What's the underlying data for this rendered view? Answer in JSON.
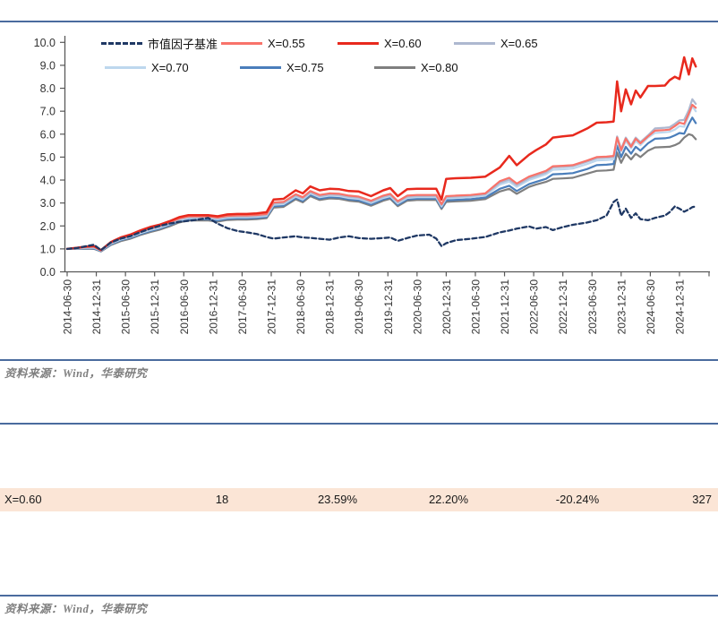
{
  "notes": {
    "source_top": "资料来源：Wind，华泰研究",
    "source_bottom": "资料来源：Wind，华泰研究"
  },
  "colors": {
    "divider": "#4a6b9e",
    "axis": "#595959",
    "tick_label": "#333333",
    "table_row_bg": "#FBE5D6"
  },
  "legend": {
    "items": [
      {
        "key": "benchmark",
        "label": "市值因子基准",
        "color": "#1F3864",
        "dashed": true
      },
      {
        "key": "x055",
        "label": "X=0.55",
        "color": "#F8736A",
        "dashed": false
      },
      {
        "key": "x060",
        "label": "X=0.60",
        "color": "#E8291D",
        "dashed": false
      },
      {
        "key": "x065",
        "label": "X=0.65",
        "color": "#AEB8D0",
        "dashed": false
      },
      {
        "key": "x070",
        "label": "X=0.70",
        "color": "#BDD7EE",
        "dashed": false
      },
      {
        "key": "x075",
        "label": "X=0.75",
        "color": "#4A7EBB",
        "dashed": false
      },
      {
        "key": "x080",
        "label": "X=0.80",
        "color": "#7F7F7F",
        "dashed": false
      }
    ]
  },
  "chart_data": {
    "type": "line",
    "title": "",
    "xlabel": "",
    "ylabel": "",
    "ylim": [
      0,
      10
    ],
    "grid": false,
    "legend_position": "top",
    "yticks": [
      "0.0",
      "1.0",
      "2.0",
      "3.0",
      "4.0",
      "5.0",
      "6.0",
      "7.0",
      "8.0",
      "9.0",
      "10.0"
    ],
    "xtick_labels": [
      "2014-06-30",
      "2014-12-31",
      "2015-06-30",
      "2015-12-31",
      "2016-06-30",
      "2016-12-31",
      "2017-06-30",
      "2017-12-31",
      "2018-06-30",
      "2018-12-31",
      "2019-06-30",
      "2019-12-31",
      "2020-06-30",
      "2020-12-31",
      "2021-06-30",
      "2021-12-31",
      "2022-06-30",
      "2022-12-31",
      "2023-06-30",
      "2023-12-31",
      "2024-06-30",
      "2024-12-31"
    ],
    "x_years": [
      2014.5,
      2014.67,
      2014.83,
      2014.96,
      2015.08,
      2015.25,
      2015.42,
      2015.58,
      2015.75,
      2015.92,
      2016.08,
      2016.25,
      2016.42,
      2016.58,
      2016.75,
      2016.92,
      2017.08,
      2017.25,
      2017.42,
      2017.58,
      2017.75,
      2017.92,
      2018.04,
      2018.21,
      2018.42,
      2018.54,
      2018.67,
      2018.83,
      2019.0,
      2019.17,
      2019.33,
      2019.5,
      2019.71,
      2019.92,
      2020.04,
      2020.17,
      2020.33,
      2020.5,
      2020.71,
      2020.83,
      2020.92,
      2021.0,
      2021.17,
      2021.42,
      2021.67,
      2021.92,
      2022.08,
      2022.21,
      2022.42,
      2022.54,
      2022.71,
      2022.83,
      2023.0,
      2023.17,
      2023.42,
      2023.58,
      2023.75,
      2023.87,
      2023.93,
      2024.0,
      2024.08,
      2024.17,
      2024.25,
      2024.33,
      2024.46,
      2024.58,
      2024.75,
      2024.83,
      2024.92,
      2025.0,
      2025.08,
      2025.16,
      2025.22,
      2025.28
    ],
    "series": [
      {
        "name": "X=0.80",
        "color": "#7F7F7F",
        "dashed": false,
        "stroke_width": 2.2,
        "values": [
          1.0,
          1.0,
          1.01,
          1.0,
          0.89,
          1.17,
          1.34,
          1.44,
          1.6,
          1.73,
          1.83,
          1.98,
          2.15,
          2.24,
          2.24,
          2.24,
          2.19,
          2.26,
          2.28,
          2.28,
          2.3,
          2.34,
          2.8,
          2.83,
          3.16,
          3.03,
          3.3,
          3.13,
          3.2,
          3.18,
          3.1,
          3.06,
          2.88,
          3.1,
          3.18,
          2.86,
          3.1,
          3.13,
          3.13,
          3.13,
          2.74,
          3.05,
          3.07,
          3.1,
          3.17,
          3.5,
          3.62,
          3.4,
          3.7,
          3.8,
          3.92,
          4.05,
          4.07,
          4.1,
          4.28,
          4.4,
          4.42,
          4.45,
          5.2,
          4.75,
          5.15,
          4.9,
          5.15,
          5.0,
          5.28,
          5.42,
          5.44,
          5.45,
          5.52,
          5.62,
          5.85,
          6.0,
          5.95,
          5.78
        ]
      },
      {
        "name": "X=0.75",
        "color": "#4A7EBB",
        "dashed": false,
        "stroke_width": 2.2,
        "values": [
          1.0,
          1.01,
          1.03,
          1.02,
          0.9,
          1.2,
          1.38,
          1.48,
          1.64,
          1.78,
          1.88,
          2.03,
          2.2,
          2.29,
          2.29,
          2.29,
          2.24,
          2.31,
          2.33,
          2.33,
          2.35,
          2.39,
          2.86,
          2.89,
          3.22,
          3.09,
          3.36,
          3.19,
          3.26,
          3.24,
          3.16,
          3.12,
          2.94,
          3.16,
          3.24,
          2.92,
          3.16,
          3.19,
          3.19,
          3.19,
          2.8,
          3.12,
          3.14,
          3.17,
          3.24,
          3.62,
          3.75,
          3.52,
          3.82,
          3.92,
          4.05,
          4.25,
          4.27,
          4.3,
          4.48,
          4.65,
          4.67,
          4.7,
          5.5,
          5.0,
          5.45,
          5.15,
          5.45,
          5.28,
          5.6,
          5.8,
          5.82,
          5.85,
          5.95,
          6.05,
          6.02,
          6.45,
          6.72,
          6.48
        ]
      },
      {
        "name": "X=0.70",
        "color": "#BDD7EE",
        "dashed": false,
        "stroke_width": 2.2,
        "values": [
          1.0,
          1.02,
          1.05,
          1.05,
          0.92,
          1.23,
          1.41,
          1.52,
          1.68,
          1.82,
          1.92,
          2.07,
          2.25,
          2.34,
          2.34,
          2.34,
          2.29,
          2.36,
          2.38,
          2.38,
          2.4,
          2.44,
          2.92,
          2.95,
          3.28,
          3.15,
          3.42,
          3.25,
          3.32,
          3.3,
          3.22,
          3.18,
          3.0,
          3.22,
          3.3,
          2.98,
          3.22,
          3.25,
          3.25,
          3.25,
          2.85,
          3.2,
          3.22,
          3.25,
          3.32,
          3.8,
          3.93,
          3.7,
          4.0,
          4.1,
          4.25,
          4.45,
          4.47,
          4.5,
          4.7,
          4.85,
          4.87,
          4.9,
          5.75,
          5.25,
          5.7,
          5.38,
          5.7,
          5.52,
          5.85,
          6.05,
          6.08,
          6.1,
          6.2,
          6.35,
          6.32,
          6.8,
          7.22,
          7.0
        ]
      },
      {
        "name": "X=0.65",
        "color": "#AEB8D0",
        "dashed": false,
        "stroke_width": 2.2,
        "values": [
          1.0,
          1.03,
          1.07,
          1.07,
          0.93,
          1.25,
          1.44,
          1.55,
          1.72,
          1.86,
          1.96,
          2.11,
          2.29,
          2.38,
          2.38,
          2.38,
          2.33,
          2.4,
          2.42,
          2.42,
          2.44,
          2.48,
          2.97,
          3.0,
          3.33,
          3.2,
          3.47,
          3.3,
          3.37,
          3.35,
          3.27,
          3.23,
          3.05,
          3.27,
          3.35,
          3.03,
          3.27,
          3.3,
          3.3,
          3.3,
          2.9,
          3.26,
          3.28,
          3.31,
          3.38,
          3.88,
          4.02,
          3.78,
          4.08,
          4.18,
          4.33,
          4.55,
          4.57,
          4.6,
          4.8,
          4.95,
          4.97,
          5.0,
          5.9,
          5.35,
          5.85,
          5.5,
          5.85,
          5.65,
          5.95,
          6.25,
          6.28,
          6.3,
          6.45,
          6.6,
          6.62,
          7.05,
          7.52,
          7.32
        ]
      },
      {
        "name": "X=0.55",
        "color": "#F8736A",
        "dashed": false,
        "stroke_width": 2.2,
        "values": [
          1.0,
          1.04,
          1.09,
          1.1,
          0.94,
          1.28,
          1.47,
          1.58,
          1.76,
          1.9,
          2.0,
          2.15,
          2.33,
          2.42,
          2.42,
          2.42,
          2.37,
          2.44,
          2.46,
          2.46,
          2.48,
          2.52,
          3.02,
          3.05,
          3.38,
          3.25,
          3.52,
          3.35,
          3.42,
          3.4,
          3.32,
          3.28,
          3.1,
          3.32,
          3.4,
          3.08,
          3.32,
          3.35,
          3.35,
          3.35,
          2.95,
          3.3,
          3.32,
          3.35,
          3.42,
          3.95,
          4.1,
          3.85,
          4.15,
          4.25,
          4.4,
          4.6,
          4.62,
          4.65,
          4.85,
          5.0,
          5.02,
          5.05,
          5.85,
          5.3,
          5.8,
          5.45,
          5.8,
          5.6,
          5.9,
          6.15,
          6.18,
          6.2,
          6.35,
          6.5,
          6.45,
          6.9,
          7.28,
          7.15
        ]
      },
      {
        "name": "X=0.60",
        "color": "#E8291D",
        "dashed": false,
        "stroke_width": 2.5,
        "values": [
          1.0,
          1.05,
          1.1,
          1.12,
          0.95,
          1.3,
          1.5,
          1.62,
          1.8,
          1.95,
          2.05,
          2.2,
          2.38,
          2.47,
          2.47,
          2.47,
          2.42,
          2.5,
          2.52,
          2.52,
          2.55,
          2.6,
          3.15,
          3.18,
          3.55,
          3.42,
          3.72,
          3.55,
          3.62,
          3.6,
          3.52,
          3.5,
          3.3,
          3.55,
          3.65,
          3.3,
          3.6,
          3.62,
          3.62,
          3.62,
          3.15,
          4.05,
          4.08,
          4.1,
          4.15,
          4.55,
          5.05,
          4.65,
          5.1,
          5.3,
          5.55,
          5.85,
          5.9,
          5.95,
          6.25,
          6.5,
          6.52,
          6.55,
          8.3,
          7.0,
          7.95,
          7.3,
          7.9,
          7.6,
          8.1,
          8.1,
          8.12,
          8.35,
          8.5,
          8.4,
          9.35,
          8.6,
          9.3,
          8.95
        ]
      },
      {
        "name": "市值因子基准",
        "color": "#1F3864",
        "dashed": true,
        "stroke_width": 2.3,
        "values": [
          1.0,
          1.04,
          1.12,
          1.18,
          0.95,
          1.28,
          1.45,
          1.55,
          1.72,
          1.88,
          2.0,
          2.1,
          2.18,
          2.22,
          2.28,
          2.35,
          2.1,
          1.9,
          1.78,
          1.72,
          1.65,
          1.52,
          1.45,
          1.5,
          1.55,
          1.5,
          1.48,
          1.44,
          1.4,
          1.5,
          1.55,
          1.47,
          1.44,
          1.47,
          1.5,
          1.35,
          1.47,
          1.58,
          1.62,
          1.45,
          1.12,
          1.25,
          1.38,
          1.44,
          1.52,
          1.72,
          1.8,
          1.88,
          1.98,
          1.88,
          1.95,
          1.82,
          1.95,
          2.05,
          2.15,
          2.25,
          2.45,
          3.05,
          3.15,
          2.45,
          2.75,
          2.35,
          2.55,
          2.3,
          2.25,
          2.35,
          2.45,
          2.6,
          2.85,
          2.75,
          2.62,
          2.72,
          2.82,
          2.85
        ]
      }
    ]
  },
  "table": {
    "row_bg": "#FBE5D6",
    "row": {
      "cells": [
        "X=0.60",
        "18",
        "23.59%",
        "22.20%",
        "-20.24%",
        "327"
      ]
    }
  }
}
